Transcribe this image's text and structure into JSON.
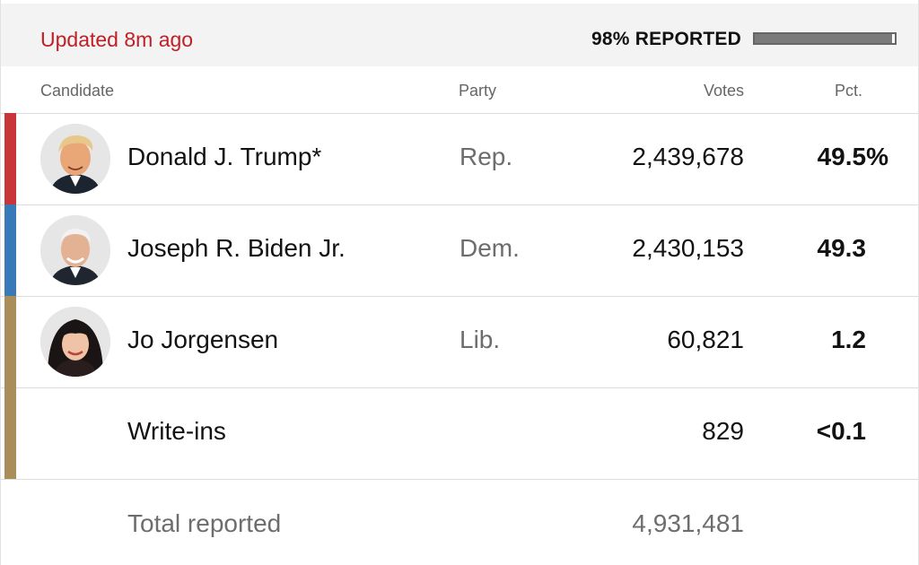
{
  "header": {
    "updated": "Updated 8m ago",
    "reported_label": "98% REPORTED",
    "reported_fraction": 0.98
  },
  "columns": {
    "candidate": "Candidate",
    "party": "Party",
    "votes": "Votes",
    "pct": "Pct."
  },
  "colors": {
    "rep": "#c8363a",
    "dem": "#3a79b8",
    "lib": "#a98d5a",
    "updated_text": "#bf2026"
  },
  "rows": [
    {
      "name": "Donald J. Trump*",
      "party": "Rep.",
      "votes": "2,439,678",
      "pct": "49.5%",
      "avatar_icon": "candidate-photo-icon"
    },
    {
      "name": "Joseph R. Biden Jr.",
      "party": "Dem.",
      "votes": "2,430,153",
      "pct": "49.3",
      "avatar_icon": "candidate-photo-icon"
    },
    {
      "name": "Jo Jorgensen",
      "party": "Lib.",
      "votes": "60,821",
      "pct": "1.2",
      "avatar_icon": "candidate-photo-icon"
    },
    {
      "name": "Write-ins",
      "party": "",
      "votes": "829",
      "pct": "<0.1"
    }
  ],
  "total": {
    "label": "Total reported",
    "votes": "4,931,481"
  }
}
